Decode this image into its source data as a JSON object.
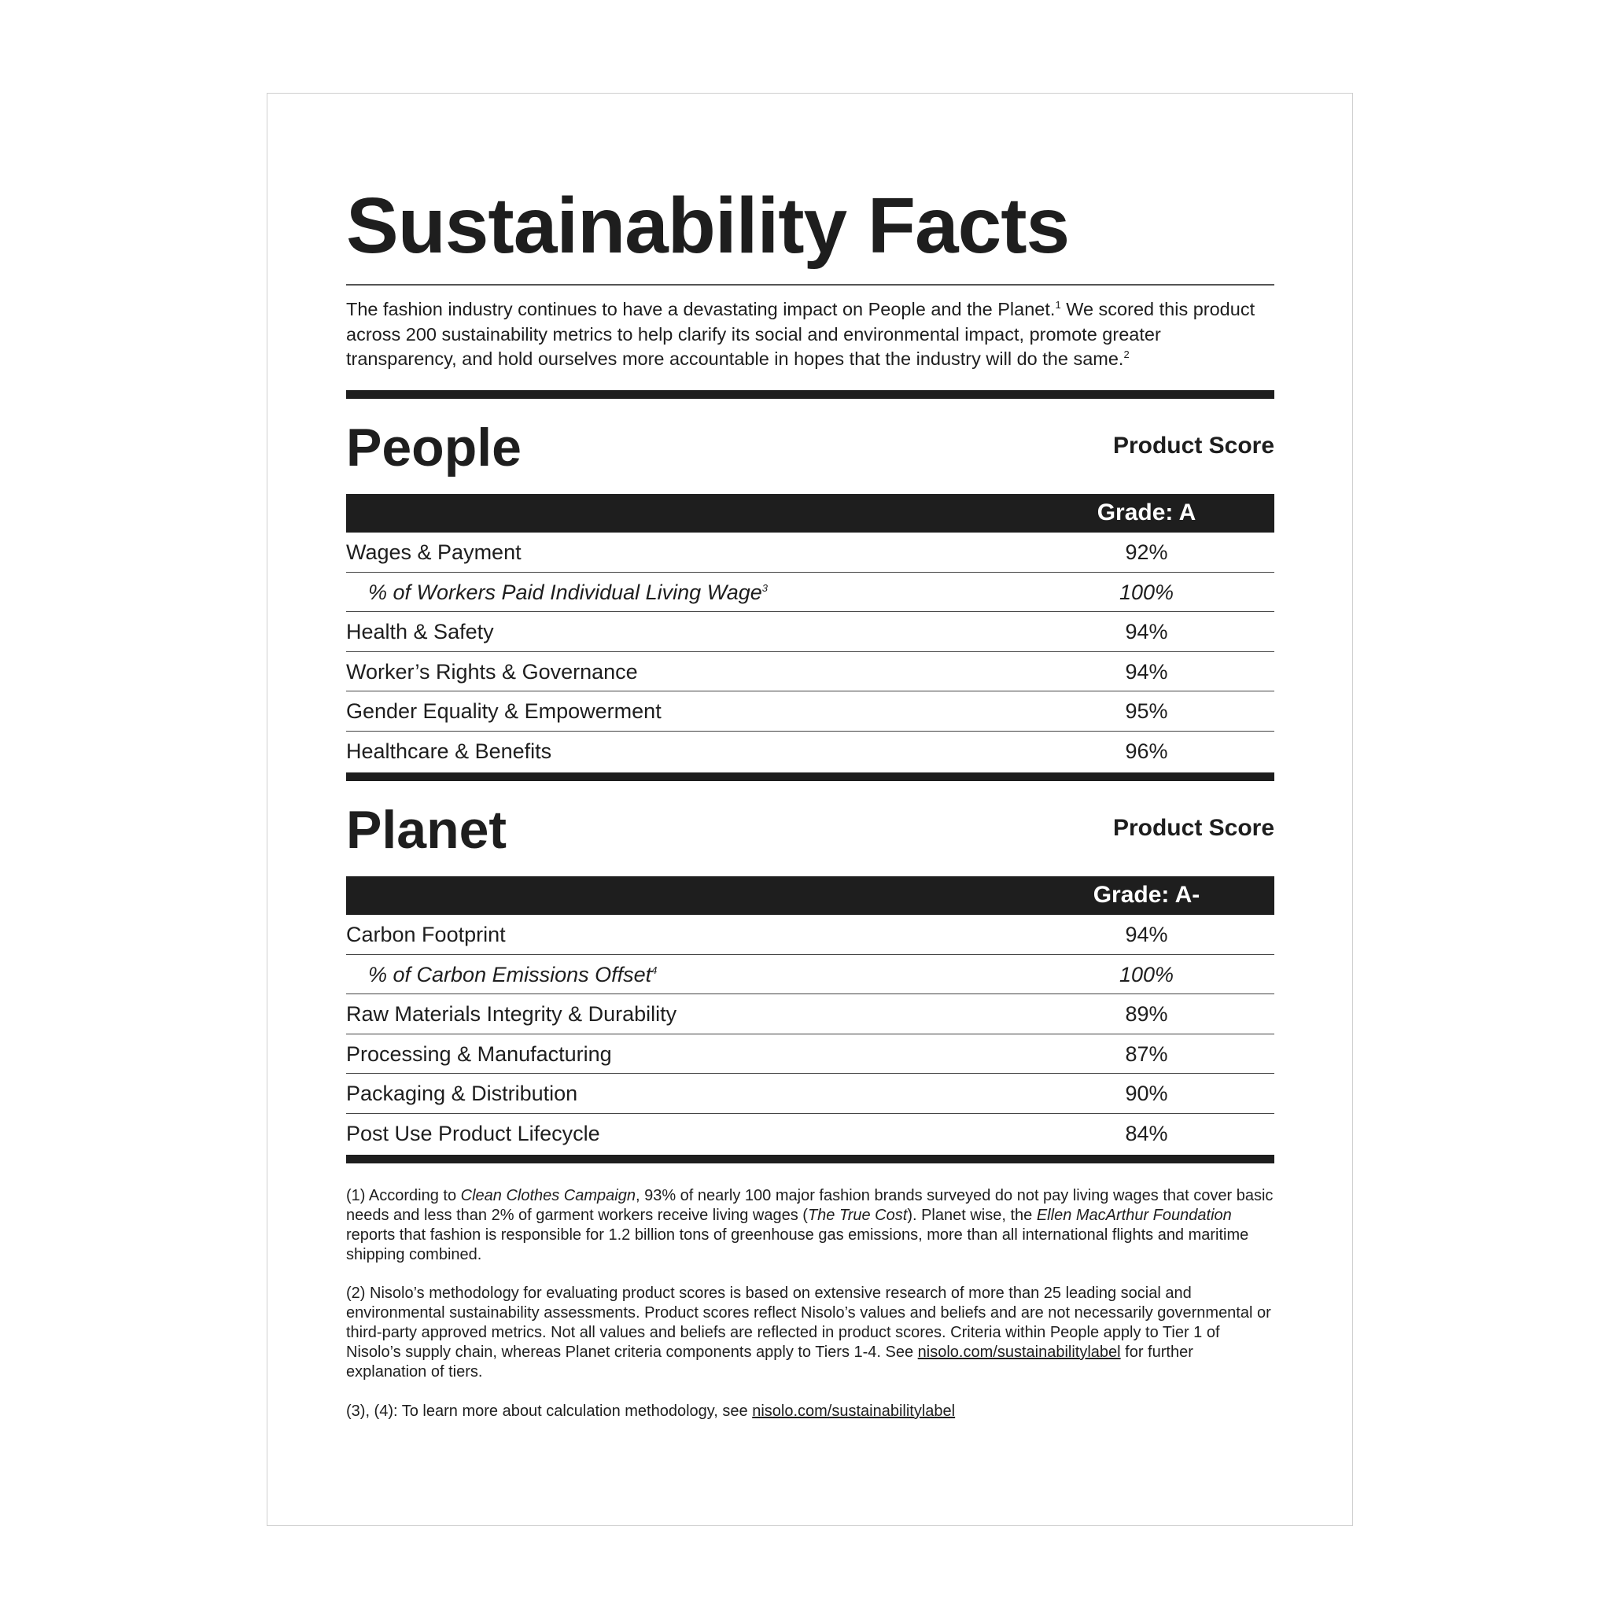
{
  "title": "Sustainability Facts",
  "intro": {
    "part1": "The fashion industry continues to have a devastating impact on People and the Planet.",
    "sup1": "1",
    "part2": " We scored this product across 200 sustainability metrics to help clarify its social and environmental impact, promote greater transparency, and hold ourselves more accountable in hopes that the industry will do the same.",
    "sup2": "2"
  },
  "people": {
    "heading": "People",
    "score_header": "Product Score",
    "grade": "Grade: A",
    "rows": [
      {
        "label": "Wages & Payment",
        "value": "92%",
        "sub": false
      },
      {
        "label": "% of Workers Paid Individual Living Wage",
        "sup": "3",
        "value": "100%",
        "sub": true
      },
      {
        "label": "Health & Safety",
        "value": "94%",
        "sub": false
      },
      {
        "label": "Worker’s Rights & Governance",
        "value": "94%",
        "sub": false
      },
      {
        "label": "Gender Equality & Empowerment",
        "value": "95%",
        "sub": false
      },
      {
        "label": "Healthcare & Benefits",
        "value": "96%",
        "sub": false
      }
    ]
  },
  "planet": {
    "heading": "Planet",
    "score_header": "Product Score",
    "grade": "Grade: A-",
    "rows": [
      {
        "label": "Carbon Footprint",
        "value": "94%",
        "sub": false
      },
      {
        "label": "% of Carbon Emissions Offset",
        "sup": "4",
        "value": "100%",
        "sub": true
      },
      {
        "label": "Raw Materials Integrity & Durability",
        "value": "89%",
        "sub": false
      },
      {
        "label": "Processing & Manufacturing",
        "value": "87%",
        "sub": false
      },
      {
        "label": "Packaging & Distribution",
        "value": "90%",
        "sub": false
      },
      {
        "label": "Post Use Product Lifecycle",
        "value": "84%",
        "sub": false
      }
    ]
  },
  "footnotes": {
    "f1": {
      "a": "(1) According to ",
      "b": "Clean Clothes Campaign",
      "c": ", 93% of nearly 100 major fashion brands surveyed do not pay living wages that cover basic needs and less than 2% of garment workers receive living wages (",
      "d": "The True Cost",
      "e": "). Planet wise, the ",
      "f": "Ellen MacArthur Foundation",
      "g": " reports that fashion is responsible for 1.2 billion tons of greenhouse gas emissions, more than all international flights and maritime shipping combined."
    },
    "f2": {
      "a": "(2) Nisolo’s methodology for evaluating product scores is based on extensive research of more than 25 leading social and environmental sustainability assessments. Product scores reflect Nisolo’s values and beliefs and are not necessarily governmental or third-party approved metrics. Not all values and beliefs are reflected in product scores. Criteria within People apply to Tier 1 of Nisolo’s supply chain, whereas Planet criteria components apply to Tiers 1-4. See ",
      "link": "nisolo.com/sustainabilitylabel",
      "b": " for further explanation of tiers."
    },
    "f3": {
      "a": "(3), (4): To learn more about calculation methodology, see ",
      "link": "nisolo.com/sustainabilitylabel"
    }
  }
}
